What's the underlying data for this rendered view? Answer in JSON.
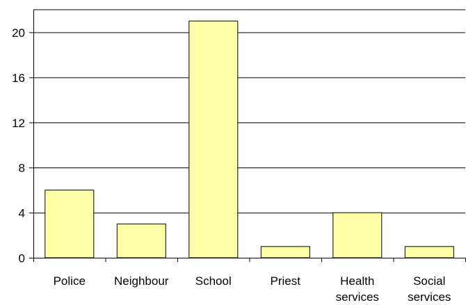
{
  "chart_data": {
    "type": "bar",
    "categories": [
      [
        "Police"
      ],
      [
        "Neighbour"
      ],
      [
        "School"
      ],
      [
        "Priest"
      ],
      [
        "Health",
        "services"
      ],
      [
        "Social",
        "services"
      ]
    ],
    "values": [
      6,
      3,
      21,
      1,
      4,
      1
    ],
    "ylim": [
      0,
      22
    ],
    "yticks": [
      "0",
      "4",
      "8",
      "12",
      "16",
      "20"
    ],
    "title": "",
    "xlabel": "",
    "ylabel": "",
    "grid": true,
    "bar_color": "#ffffa8"
  }
}
